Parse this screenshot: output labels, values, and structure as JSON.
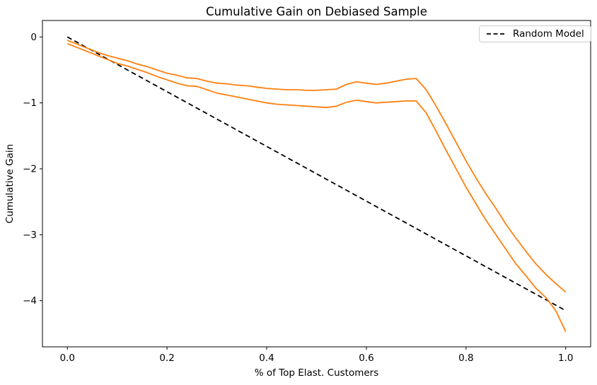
{
  "chart_data": {
    "type": "line",
    "title": "Cumulative Gain on Debiased Sample",
    "xlabel": "% of Top Elast. Customers",
    "ylabel": "Cumulative Gain",
    "grid": false,
    "legend_position": "upper right",
    "legend_border_color": "#cccccc",
    "xlim": [
      -0.05,
      1.05
    ],
    "ylim": [
      -4.7,
      0.25
    ],
    "xticks": {
      "values": [
        0.0,
        0.2,
        0.4,
        0.6,
        0.8,
        1.0
      ],
      "labels": [
        "0.0",
        "0.2",
        "0.4",
        "0.6",
        "0.8",
        "1.0"
      ]
    },
    "yticks": {
      "values": [
        0,
        -1,
        -2,
        -3,
        -4
      ],
      "labels": [
        "0",
        "−1",
        "−2",
        "−3",
        "−4"
      ]
    },
    "x": [
      0.0,
      0.02,
      0.04,
      0.06,
      0.08,
      0.1,
      0.12,
      0.14,
      0.16,
      0.18,
      0.2,
      0.22,
      0.24,
      0.26,
      0.28,
      0.3,
      0.32,
      0.34,
      0.36,
      0.38,
      0.4,
      0.42,
      0.44,
      0.46,
      0.48,
      0.5,
      0.52,
      0.54,
      0.56,
      0.58,
      0.6,
      0.62,
      0.64,
      0.66,
      0.68,
      0.7,
      0.72,
      0.74,
      0.76,
      0.78,
      0.8,
      0.82,
      0.84,
      0.86,
      0.88,
      0.9,
      0.92,
      0.94,
      0.96,
      0.98,
      1.0
    ],
    "series": [
      {
        "id": "random-model",
        "label": "Random Model",
        "color": "#000000",
        "linestyle": "dashed",
        "linewidth": 1.8,
        "in_legend": true,
        "x": [
          0.0,
          1.0
        ],
        "y": [
          0.0,
          -4.15
        ]
      },
      {
        "id": "gain-upper",
        "color": "#ff7f0e",
        "linestyle": "solid",
        "linewidth": 1.8,
        "in_legend": false,
        "y": [
          -0.05,
          -0.11,
          -0.17,
          -0.23,
          -0.28,
          -0.32,
          -0.36,
          -0.41,
          -0.45,
          -0.5,
          -0.55,
          -0.58,
          -0.62,
          -0.63,
          -0.67,
          -0.7,
          -0.71,
          -0.73,
          -0.74,
          -0.76,
          -0.78,
          -0.79,
          -0.8,
          -0.8,
          -0.81,
          -0.81,
          -0.8,
          -0.79,
          -0.72,
          -0.68,
          -0.7,
          -0.72,
          -0.7,
          -0.67,
          -0.64,
          -0.63,
          -0.8,
          -1.05,
          -1.32,
          -1.6,
          -1.88,
          -2.14,
          -2.38,
          -2.6,
          -2.84,
          -3.05,
          -3.25,
          -3.44,
          -3.6,
          -3.74,
          -3.87
        ]
      },
      {
        "id": "gain-lower",
        "color": "#ff7f0e",
        "linestyle": "solid",
        "linewidth": 1.8,
        "in_legend": false,
        "y": [
          -0.1,
          -0.16,
          -0.22,
          -0.28,
          -0.34,
          -0.4,
          -0.44,
          -0.49,
          -0.54,
          -0.6,
          -0.65,
          -0.7,
          -0.74,
          -0.75,
          -0.8,
          -0.85,
          -0.88,
          -0.91,
          -0.94,
          -0.97,
          -1.0,
          -1.02,
          -1.03,
          -1.04,
          -1.05,
          -1.06,
          -1.07,
          -1.05,
          -0.99,
          -0.96,
          -0.98,
          -1.0,
          -0.99,
          -0.98,
          -0.97,
          -0.97,
          -1.15,
          -1.43,
          -1.72,
          -2.0,
          -2.28,
          -2.53,
          -2.78,
          -3.0,
          -3.22,
          -3.44,
          -3.62,
          -3.81,
          -3.95,
          -4.15,
          -4.47
        ]
      }
    ]
  }
}
